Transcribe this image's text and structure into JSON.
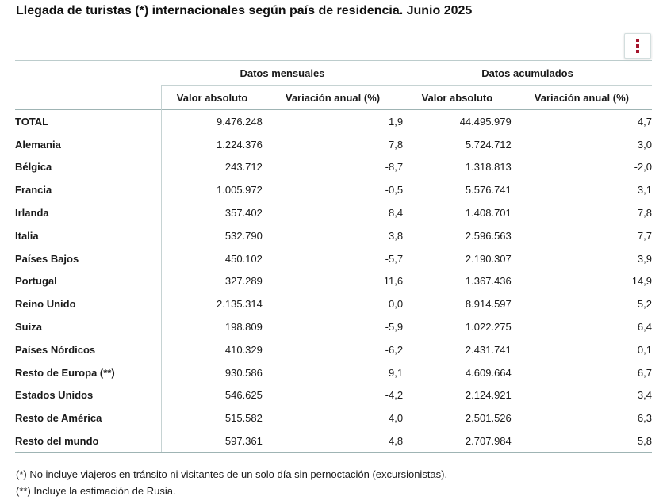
{
  "title": "Llegada de turistas (*) internacionales según país de residencia. Junio 2025",
  "menu": {
    "icon": "vertical-ellipsis-icon"
  },
  "table": {
    "groups": [
      "Datos mensuales",
      "Datos acumulados"
    ],
    "subheaders": [
      "Valor absoluto",
      "Variación anual (%)",
      "Valor absoluto",
      "Variación anual (%)"
    ],
    "rows": [
      {
        "label": "TOTAL",
        "values": [
          "9.476.248",
          "1,9",
          "44.495.979",
          "4,7"
        ]
      },
      {
        "label": "Alemania",
        "values": [
          "1.224.376",
          "7,8",
          "5.724.712",
          "3,0"
        ]
      },
      {
        "label": "Bélgica",
        "values": [
          "243.712",
          "-8,7",
          "1.318.813",
          "-2,0"
        ]
      },
      {
        "label": "Francia",
        "values": [
          "1.005.972",
          "-0,5",
          "5.576.741",
          "3,1"
        ]
      },
      {
        "label": "Irlanda",
        "values": [
          "357.402",
          "8,4",
          "1.408.701",
          "7,8"
        ]
      },
      {
        "label": "Italia",
        "values": [
          "532.790",
          "3,8",
          "2.596.563",
          "7,7"
        ]
      },
      {
        "label": "Países Bajos",
        "values": [
          "450.102",
          "-5,7",
          "2.190.307",
          "3,9"
        ]
      },
      {
        "label": "Portugal",
        "values": [
          "327.289",
          "11,6",
          "1.367.436",
          "14,9"
        ]
      },
      {
        "label": "Reino Unido",
        "values": [
          "2.135.314",
          "0,0",
          "8.914.597",
          "5,2"
        ]
      },
      {
        "label": "Suiza",
        "values": [
          "198.809",
          "-5,9",
          "1.022.275",
          "6,4"
        ]
      },
      {
        "label": "Países Nórdicos",
        "values": [
          "410.329",
          "-6,2",
          "2.431.741",
          "0,1"
        ]
      },
      {
        "label": "Resto de Europa (**)",
        "values": [
          "930.586",
          "9,1",
          "4.609.664",
          "6,7"
        ]
      },
      {
        "label": "Estados Unidos",
        "values": [
          "546.625",
          "-4,2",
          "2.124.921",
          "3,4"
        ]
      },
      {
        "label": "Resto de América",
        "values": [
          "515.582",
          "4,0",
          "2.501.526",
          "6,3"
        ]
      },
      {
        "label": "Resto del mundo",
        "values": [
          "597.361",
          "4,8",
          "2.707.984",
          "5,8"
        ]
      }
    ]
  },
  "footnotes": [
    "(*) No incluye viajeros en tránsito ni visitantes de un solo día sin pernoctación (excursionistas).",
    "(**) Incluye la estimación de Rusia."
  ],
  "colors": {
    "accent": "#a5142c",
    "rule": "#9fb4b4"
  }
}
